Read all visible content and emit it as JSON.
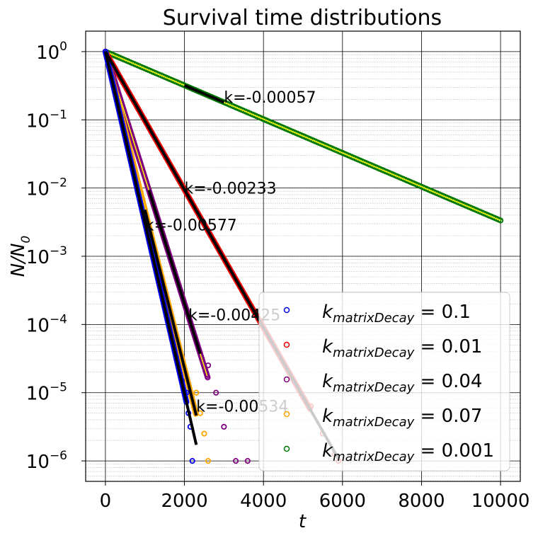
{
  "chart_data": {
    "type": "scatter",
    "title": "Survival time distributions",
    "xlabel": "t",
    "ylabel": "N/N",
    "ylabel_sub": "0",
    "xlim": [
      -500,
      10500
    ],
    "ylim_log10": [
      -6.3,
      0.3
    ],
    "yscale": "log",
    "grid": true,
    "legend_position": "lower right",
    "x_ticks": [
      0,
      2000,
      4000,
      6000,
      8000,
      10000
    ],
    "x_tick_labels": [
      "0",
      "2000",
      "4000",
      "6000",
      "8000",
      "10000"
    ],
    "y_ticks_exp": [
      0,
      -1,
      -2,
      -3,
      -4,
      -5,
      -6
    ],
    "y_tick_base": "10",
    "y_tick_exponents": [
      "0",
      "−1",
      "−2",
      "−3",
      "−4",
      "−5",
      "−6"
    ],
    "series": [
      {
        "label_prefix": "k",
        "label_sub": "matrixDecay",
        "label_suffix": " = 0.1",
        "color": "#0000ee",
        "fit_k": -0.00577,
        "fit_range": [
          0,
          2300
        ],
        "x_end": 2200,
        "tail": [
          [
            2050,
            -5.0
          ],
          [
            2100,
            -5.3
          ],
          [
            2150,
            -5.5
          ],
          [
            2200,
            -6.0
          ]
        ]
      },
      {
        "label_prefix": "k",
        "label_sub": "matrixDecay",
        "label_suffix": " = 0.01",
        "color": "#ee0000",
        "fit_k": -0.00233,
        "fit_range": [
          0,
          5900
        ],
        "x_end": 5900,
        "tail": [
          [
            5200,
            -5.2
          ],
          [
            5500,
            -5.6
          ],
          [
            5800,
            -5.9
          ],
          [
            5900,
            -6.0
          ]
        ]
      },
      {
        "label_prefix": "k",
        "label_sub": "matrixDecay",
        "label_suffix": " = 0.04",
        "color": "#800080",
        "fit_k": -0.00425,
        "fit_range": [
          1100,
          2400
        ],
        "x_end": 3600,
        "tail": [
          [
            2600,
            -4.6
          ],
          [
            2800,
            -5.0
          ],
          [
            3000,
            -5.5
          ],
          [
            3300,
            -6.0
          ],
          [
            3600,
            -6.0
          ]
        ]
      },
      {
        "label_prefix": "k",
        "label_sub": "matrixDecay",
        "label_suffix": " = 0.07",
        "color": "#ffa500",
        "fit_k": -0.00534,
        "fit_range": [
          1000,
          2300
        ],
        "x_end": 2600,
        "tail": [
          [
            2300,
            -5.0
          ],
          [
            2400,
            -5.3
          ],
          [
            2500,
            -5.6
          ],
          [
            2600,
            -6.0
          ]
        ]
      },
      {
        "label_prefix": "k",
        "label_sub": "matrixDecay",
        "label_suffix": " = 0.001",
        "color": "#007700",
        "fit_k": -0.00057,
        "fit_range": [
          2000,
          3000
        ],
        "x_end": 10000,
        "tail": []
      }
    ],
    "annotations": [
      {
        "text": "k=-0.00057",
        "x": 3000,
        "y_log10": -0.75
      },
      {
        "text": "k=-0.00233",
        "x": 2000,
        "y_log10": -2.08
      },
      {
        "text": "k=-0.00577",
        "x": 1000,
        "y_log10": -2.62
      },
      {
        "text": "k=-0.00425",
        "x": 2100,
        "y_log10": -3.94
      },
      {
        "text": "k=-0.00534",
        "x": 2300,
        "y_log10": -5.28
      }
    ]
  }
}
